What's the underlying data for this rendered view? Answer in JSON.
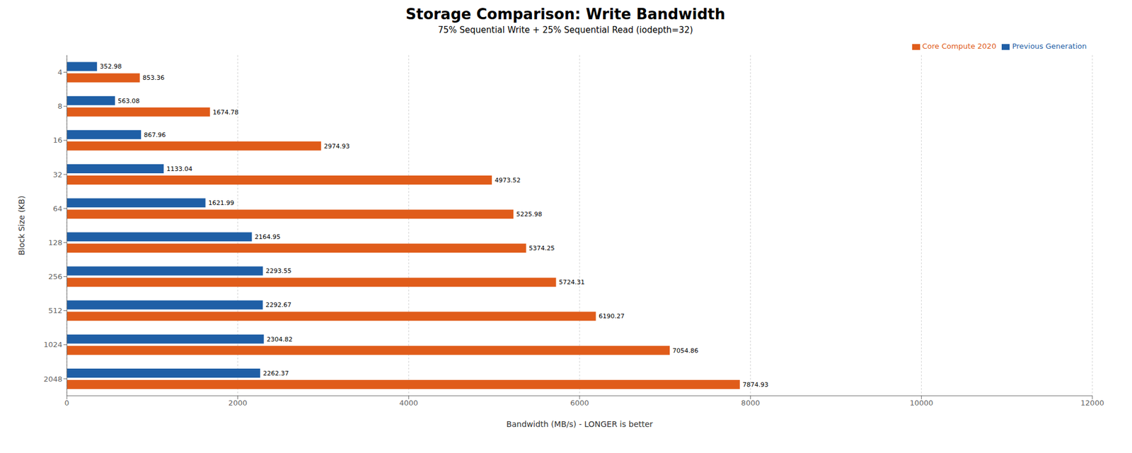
{
  "chart_data": {
    "type": "bar",
    "orientation": "horizontal",
    "title": "Storage Comparison: Write Bandwidth",
    "subtitle": "75% Sequential Write + 25% Sequential Read (iodepth=32)",
    "ylabel": "Block Size (KB)",
    "xlabel": "Bandwidth (MB/s) - LONGER is better",
    "categories": [
      "4",
      "8",
      "16",
      "32",
      "64",
      "128",
      "256",
      "512",
      "1024",
      "2048"
    ],
    "series": [
      {
        "name": "Previous Generation",
        "color": "#1f5fa6",
        "values": [
          352.98,
          563.08,
          867.96,
          1133.04,
          1621.99,
          2164.95,
          2293.55,
          2292.67,
          2304.82,
          2262.37
        ]
      },
      {
        "name": "Core Compute 2020",
        "color": "#e05c1a",
        "values": [
          853.36,
          1674.78,
          2974.93,
          4973.52,
          5225.98,
          5374.25,
          5724.31,
          6190.27,
          7054.86,
          7874.93
        ]
      }
    ],
    "xlim": [
      0,
      12000
    ],
    "xticks": [
      0,
      2000,
      4000,
      6000,
      8000,
      10000,
      12000
    ],
    "grid": true,
    "legend": "upper right",
    "data_labels": true
  }
}
